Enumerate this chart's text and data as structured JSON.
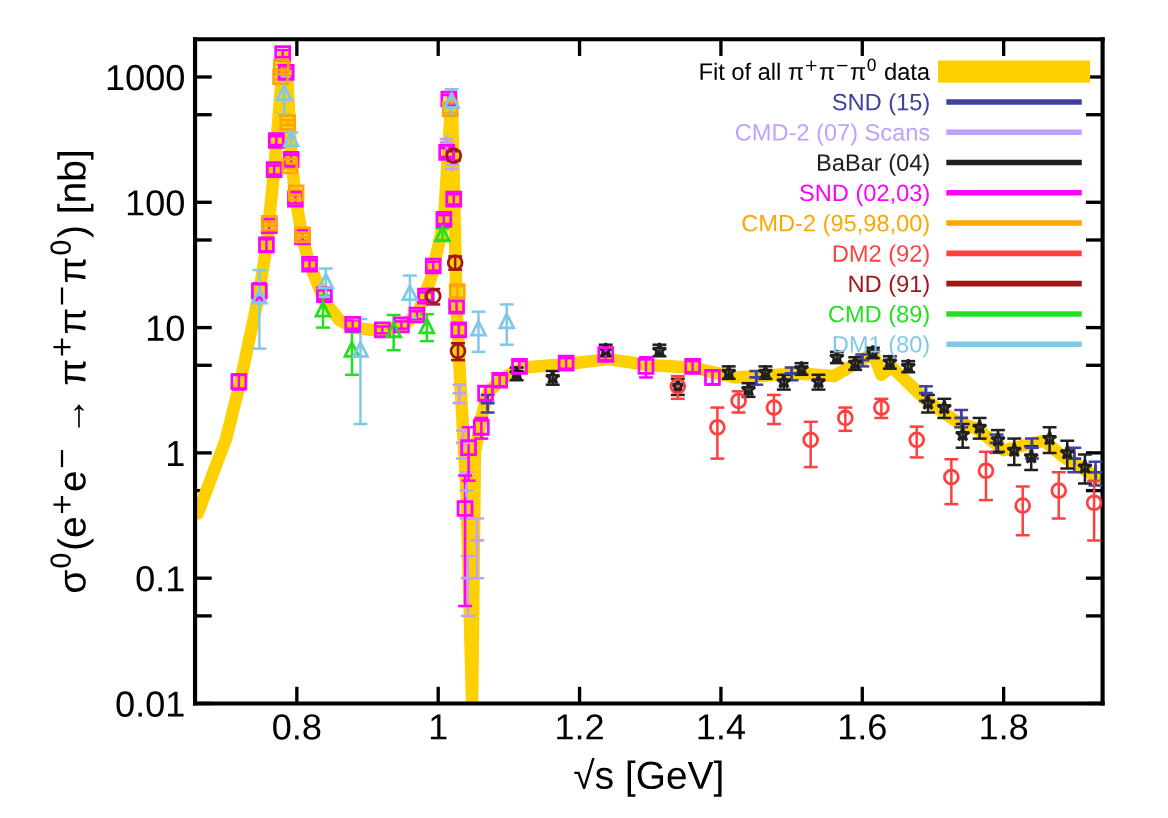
{
  "chart_data": {
    "type": "scatter",
    "xlabel": "√s [GeV]",
    "ylabel": "σ$^{0}$(e$^{+}$e$^{−}$ → π$^{+}$π$^{−}$π$^{0}$) [nb]",
    "log": "y",
    "xlim": [
      0.656,
      1.94
    ],
    "ylim": [
      0.01,
      2000
    ],
    "xticks": [
      0.8,
      1,
      1.2,
      1.4,
      1.6,
      1.8
    ],
    "yticks": [
      {
        "value": 0.01,
        "label": "0.01"
      },
      {
        "value": 0.05,
        "label": null
      },
      {
        "value": 0.1,
        "label": "0.1"
      },
      {
        "value": 0.5,
        "label": null
      },
      1,
      {
        "value": 5,
        "label": null
      },
      10,
      {
        "value": 50,
        "label": null
      },
      100,
      {
        "value": 500,
        "label": null
      },
      1000
    ],
    "grid": false,
    "legend": "top right",
    "series": [
      {
        "name": "Fit of all π$^{+}$π$^{−}$π$^{0}$ data",
        "type": "line",
        "color": "#ffd000",
        "marker": "none",
        "x": [
          0.66,
          0.7,
          0.72,
          0.747,
          0.757,
          0.768,
          0.777,
          0.782,
          0.787,
          0.792,
          0.798,
          0.808,
          0.818,
          0.84,
          0.86,
          0.88,
          0.92,
          0.95,
          0.97,
          0.99,
          1.008,
          1.015,
          1.019,
          1.022,
          1.026,
          1.03,
          1.04,
          1.048,
          1.052,
          1.06,
          1.07,
          1.09,
          1.12,
          1.18,
          1.24,
          1.3,
          1.36,
          1.42,
          1.51,
          1.56,
          1.604,
          1.615,
          1.627,
          1.641,
          1.688,
          1.735,
          1.763,
          1.8,
          1.857,
          1.885,
          1.94
        ],
        "values": [
          0.33,
          1.3,
          3.7,
          19,
          45,
          180,
          750,
          1500,
          900,
          230,
          110,
          52,
          32,
          16,
          11.5,
          10,
          9.4,
          10.5,
          12.6,
          25,
          70,
          300,
          700,
          150,
          15,
          5,
          0.5,
          0.01,
          1.0,
          1.8,
          3.0,
          3.9,
          4.8,
          5.1,
          5.6,
          5.0,
          4.8,
          4.0,
          4.3,
          4.1,
          5.7,
          6.3,
          4.2,
          4.9,
          2.7,
          1.75,
          1.55,
          1.05,
          1.25,
          0.93,
          0.6
        ]
      },
      {
        "name": "SND (15)",
        "color": "#4040a0",
        "marker": "cross",
        "x": [
          1.07,
          1.3,
          1.45,
          1.5,
          1.6,
          1.69,
          1.74,
          1.79,
          1.84,
          1.9,
          1.93
        ],
        "values": [
          2.5,
          null,
          4.0,
          4.3,
          5.5,
          3.0,
          1.9,
          1.2,
          1.1,
          0.9,
          0.7
        ],
        "errors": [
          0.4,
          null,
          0.5,
          0.5,
          0.6,
          0.4,
          0.3,
          0.2,
          0.2,
          0.2,
          0.15
        ]
      },
      {
        "name": "CMD-2 (07) Scans",
        "color": "#c0a0ff",
        "marker": "cross",
        "x": [
          1.012,
          1.02,
          1.03,
          1.035,
          1.04,
          1.042,
          1.055
        ],
        "values": [
          300,
          200,
          3.0,
          1.2,
          0.5,
          0.1,
          0.2
        ],
        "errors": [
          20,
          15,
          0.5,
          0.3,
          0.2,
          0.05,
          0.1
        ]
      },
      {
        "name": "BaBar (04)",
        "color": "#202020",
        "marker": "star",
        "x": [
          1.111,
          1.162,
          1.237,
          1.313,
          1.339,
          1.411,
          1.439,
          1.463,
          1.489,
          1.514,
          1.538,
          1.564,
          1.59,
          1.615,
          1.639,
          1.665,
          1.693,
          1.716,
          1.742,
          1.766,
          1.792,
          1.815,
          1.839,
          1.865,
          1.89,
          1.915
        ],
        "values": [
          4.3,
          4.0,
          6.6,
          6.6,
          3.4,
          4.4,
          3.2,
          4.4,
          3.7,
          4.7,
          3.7,
          5.8,
          5.2,
          6.3,
          5.3,
          4.9,
          2.5,
          2.3,
          1.4,
          1.6,
          1.27,
          1.05,
          0.93,
          1.3,
          1.0,
          0.77
        ],
        "errors": [
          0.5,
          0.5,
          0.7,
          0.7,
          0.5,
          0.5,
          0.4,
          0.5,
          0.5,
          0.5,
          0.5,
          0.6,
          0.6,
          0.6,
          0.6,
          0.5,
          0.4,
          0.4,
          0.3,
          0.3,
          0.25,
          0.25,
          0.2,
          0.3,
          0.25,
          0.2
        ]
      },
      {
        "name": "SND (02,03)",
        "color": "#ff00ff",
        "marker": "square",
        "x": [
          0.718,
          0.747,
          0.757,
          0.761,
          0.768,
          0.771,
          0.777,
          0.78,
          0.785,
          0.792,
          0.798,
          0.808,
          0.818,
          0.839,
          0.879,
          0.921,
          0.948,
          0.97,
          0.982,
          0.993,
          1.008,
          1.012,
          1.015,
          1.022,
          1.026,
          1.029,
          1.038,
          1.043,
          1.061,
          1.067,
          1.087,
          1.115,
          1.181,
          1.237,
          1.294,
          1.36,
          1.388
        ],
        "values": [
          3.7,
          19.6,
          45.7,
          65,
          182,
          311,
          null,
          1540,
          1090,
          220,
          106,
          53,
          32,
          18.3,
          10.6,
          9.6,
          10.5,
          12.6,
          17.8,
          31,
          73,
          250,
          667,
          106,
          14.8,
          9.6,
          0.36,
          1.1,
          1.6,
          3.0,
          3.8,
          4.9,
          5.2,
          6.1,
          4.9,
          4.9,
          4.0
        ],
        "errors": [
          0.5,
          3,
          5,
          6,
          15,
          25,
          null,
          100,
          80,
          20,
          8,
          4,
          2.5,
          1.5,
          0.8,
          0.6,
          0.7,
          0.9,
          1.3,
          2.5,
          6,
          20,
          50,
          10,
          1.5,
          1.0,
          0.3,
          0.5,
          0.3,
          0.4,
          0.4,
          0.5,
          0.5,
          0.6,
          0.9,
          0.5,
          0.5
        ]
      },
      {
        "name": "CMD-2 (95,98,00)",
        "color": "#ffa500",
        "marker": "square",
        "x": [
          0.761,
          0.777,
          0.778,
          0.787,
          0.79,
          0.799,
          0.808,
          1.017,
          1.027
        ],
        "values": [
          68,
          1000,
          1200,
          433,
          195,
          119,
          55,
          555,
          19.4
        ],
        "errors": [
          3,
          40,
          50,
          20,
          9,
          5,
          2.5,
          40,
          2
        ]
      },
      {
        "name": "DM2 (92)",
        "color": "#ff4040",
        "marker": "circle",
        "x": [
          1.339,
          1.395,
          1.425,
          1.475,
          1.527,
          1.576,
          1.627,
          1.677,
          1.726,
          1.775,
          1.827,
          1.878,
          1.928
        ],
        "values": [
          3.4,
          1.6,
          2.6,
          2.3,
          1.27,
          1.9,
          2.3,
          1.27,
          0.64,
          0.72,
          0.38,
          0.5,
          0.4
        ],
        "errors": [
          0.7,
          0.7,
          0.5,
          0.6,
          0.5,
          0.4,
          0.4,
          0.35,
          0.25,
          0.3,
          0.16,
          0.2,
          0.2
        ]
      },
      {
        "name": "ND (91)",
        "color": "#a01818",
        "marker": "circle",
        "x": [
          0.993,
          1.022,
          1.024,
          1.028
        ],
        "values": [
          17.8,
          235,
          33,
          6.5
        ],
        "errors": [
          2.5,
          20,
          4,
          1
        ]
      },
      {
        "name": "CMD (89)",
        "color": "#20e020",
        "marker": "triangle",
        "x": [
          0.837,
          0.878,
          0.937,
          0.984,
          1.006
        ],
        "values": [
          14,
          6.7,
          9.6,
          10.3,
          56
        ],
        "errors": [
          4,
          2.5,
          3,
          2.5,
          6
        ]
      },
      {
        "name": "DM1 (80)",
        "color": "#80c8e8",
        "marker": "triangle",
        "x": [
          0.747,
          0.782,
          0.792,
          0.841,
          0.89,
          0.96,
          1.019,
          1.057,
          1.097
        ],
        "values": [
          17.8,
          750,
          320,
          23.6,
          6.7,
          19,
          650,
          9.9,
          11.3
        ],
        "errors": [
          11,
          250,
          40,
          6,
          5,
          7,
          150,
          3.5,
          4
        ]
      }
    ]
  }
}
